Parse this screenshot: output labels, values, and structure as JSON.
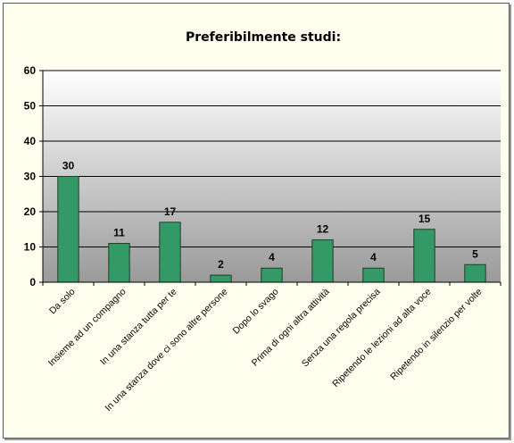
{
  "chart_data": {
    "type": "bar",
    "title": "Preferibilmente studi:",
    "categories": [
      "Da solo",
      "Insieme ad un compagno",
      "In una stanza tutta per te",
      "In una stanza dove ci sono altre persone",
      "Dopo lo svago",
      "Prima di ogni altra attività",
      "Senza una regola precisa",
      "Ripetendo le lezioni ad alta voce",
      "Ripetendo in silenzio per volte"
    ],
    "values": [
      30,
      11,
      17,
      2,
      4,
      12,
      4,
      15,
      5
    ],
    "ylim": [
      0,
      60
    ],
    "yticks": [
      "0",
      "10",
      "20",
      "30",
      "40",
      "50",
      "60"
    ],
    "grid": true,
    "legend": "none",
    "colors": {
      "bar": "#339966",
      "bar_border": "#1f3d2b",
      "background": "#fffff0"
    }
  }
}
